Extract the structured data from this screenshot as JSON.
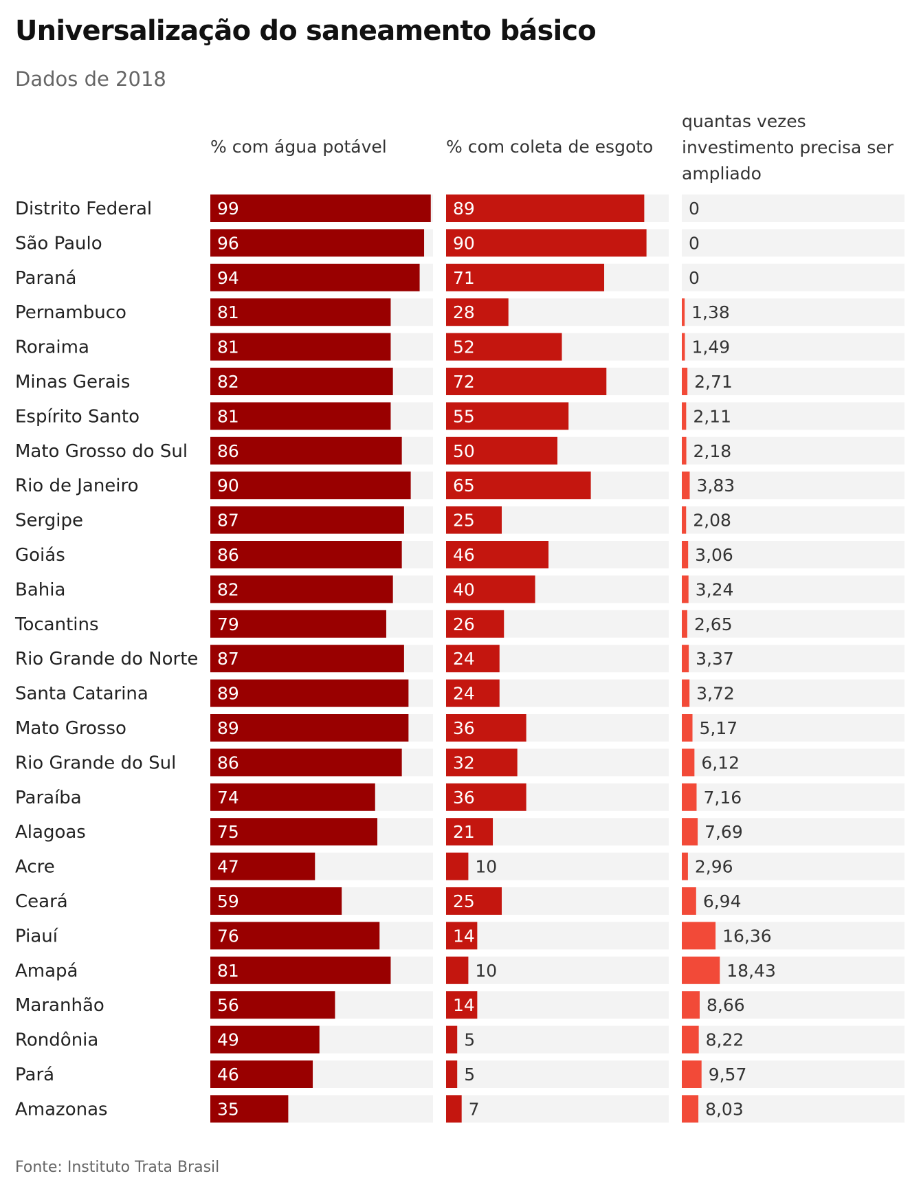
{
  "title": "Universalização do saneamento básico",
  "subtitle": "Dados de 2018",
  "source": "Fonte: Instituto Trata Brasil",
  "colors": {
    "track": "#f3f3f3",
    "water": "#990000",
    "sewage": "#c4160f",
    "investment": "#f24a38"
  },
  "chart_data": {
    "type": "bar",
    "orientation": "horizontal",
    "categories": [
      "Distrito Federal",
      "São Paulo",
      "Paraná",
      "Pernambuco",
      "Roraima",
      "Minas Gerais",
      "Espírito Santo",
      "Mato Grosso do Sul",
      "Rio de Janeiro",
      "Sergipe",
      "Goiás",
      "Bahia",
      "Tocantins",
      "Rio Grande do Norte",
      "Santa Catarina",
      "Mato Grosso",
      "Rio Grande do Sul",
      "Paraíba",
      "Alagoas",
      "Acre",
      "Ceará",
      "Piauí",
      "Amapá",
      "Maranhão",
      "Rondônia",
      "Pará",
      "Amazonas"
    ],
    "series": [
      {
        "name": "% com água potável",
        "values": [
          99,
          96,
          94,
          81,
          81,
          82,
          81,
          86,
          90,
          87,
          86,
          82,
          79,
          87,
          89,
          89,
          86,
          74,
          75,
          47,
          59,
          76,
          81,
          56,
          49,
          46,
          35
        ],
        "labels": [
          "99",
          "96",
          "94",
          "81",
          "81",
          "82",
          "81",
          "86",
          "90",
          "87",
          "86",
          "82",
          "79",
          "87",
          "89",
          "89",
          "86",
          "74",
          "75",
          "47",
          "59",
          "76",
          "81",
          "56",
          "49",
          "46",
          "35"
        ],
        "max": 100
      },
      {
        "name": "% com coleta de esgoto",
        "values": [
          89,
          90,
          71,
          28,
          52,
          72,
          55,
          50,
          65,
          25,
          46,
          40,
          26,
          24,
          24,
          36,
          32,
          36,
          21,
          10,
          25,
          14,
          10,
          14,
          5,
          5,
          7
        ],
        "labels": [
          "89",
          "90",
          "71",
          "28",
          "52",
          "72",
          "55",
          "50",
          "65",
          "25",
          "46",
          "40",
          "26",
          "24",
          "24",
          "36",
          "32",
          "36",
          "21",
          "10",
          "25",
          "14",
          "10",
          "14",
          "5",
          "5",
          "7"
        ],
        "max": 100
      },
      {
        "name": "quantas vezes investimento precisa ser ampliado",
        "values": [
          0,
          0,
          0,
          1.38,
          1.49,
          2.71,
          2.11,
          2.18,
          3.83,
          2.08,
          3.06,
          3.24,
          2.65,
          3.37,
          3.72,
          5.17,
          6.12,
          7.16,
          7.69,
          2.96,
          6.94,
          16.36,
          18.43,
          8.66,
          8.22,
          9.57,
          8.03
        ],
        "labels": [
          "0",
          "0",
          "0",
          "1,38",
          "1,49",
          "2,71",
          "2,11",
          "2,18",
          "3,83",
          "2,08",
          "3,06",
          "3,24",
          "2,65",
          "3,37",
          "3,72",
          "5,17",
          "6,12",
          "7,16",
          "7,69",
          "2,96",
          "6,94",
          "16,36",
          "18,43",
          "8,66",
          "8,22",
          "9,57",
          "8,03"
        ],
        "max": 100
      }
    ]
  }
}
